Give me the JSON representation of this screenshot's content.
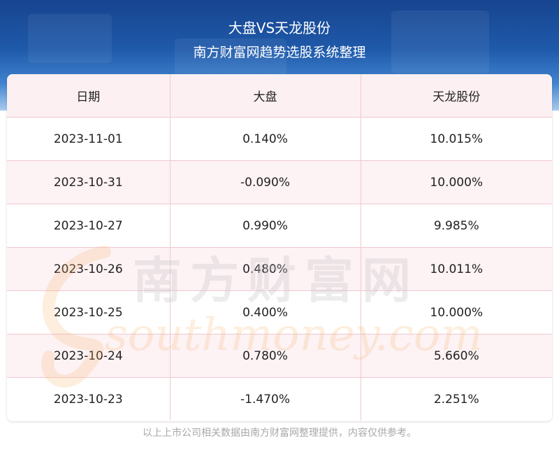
{
  "header": {
    "title": "大盘VS天龙股份",
    "subtitle": "南方财富网趋势选股系统整理"
  },
  "table": {
    "columns": [
      "日期",
      "大盘",
      "天龙股份"
    ],
    "rows": [
      [
        "2023-11-01",
        "0.140%",
        "10.015%"
      ],
      [
        "2023-10-31",
        "-0.090%",
        "10.000%"
      ],
      [
        "2023-10-27",
        "0.990%",
        "9.985%"
      ],
      [
        "2023-10-26",
        "0.480%",
        "10.011%"
      ],
      [
        "2023-10-25",
        "0.400%",
        "10.000%"
      ],
      [
        "2023-10-24",
        "0.780%",
        "5.660%"
      ],
      [
        "2023-10-23",
        "-1.470%",
        "2.251%"
      ]
    ]
  },
  "watermark": {
    "cn": "南方财富网",
    "en": "southmoney.com"
  },
  "footer": {
    "note": "以上上市公司相关数据由南方财富网整理提供，内容仅供参考。"
  },
  "colors": {
    "header_top": "#17448f",
    "header_bottom": "#a9cbee",
    "row_alt": "#fdf0f2",
    "grid_line": "#efc8cf",
    "watermark_orange": "#f6b36a"
  }
}
